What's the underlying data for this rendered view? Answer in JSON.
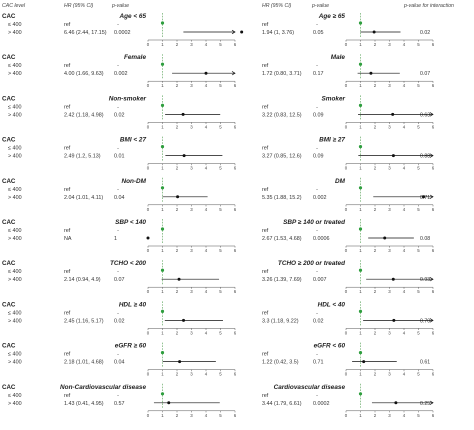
{
  "header": {
    "cac_level": "CAC level",
    "hr_left": "HR (95% CI)",
    "p_left": "p-value",
    "hr_right": "HR (95% CI)",
    "p_right": "p-value",
    "p_interaction": "p-value for interaction"
  },
  "chart_data": {
    "type": "forest",
    "row_group_label": "CAC",
    "row_levels": [
      "≤ 400",
      "> 400"
    ],
    "x_ticks": [
      "0",
      "1",
      "2",
      "3",
      "4",
      "5",
      "6"
    ],
    "xlim": [
      0,
      6
    ],
    "reference_line": 1,
    "colors": {
      "reference_marker": "#2e9e3e",
      "estimate": "#111111",
      "reference_line": "#66aa66"
    },
    "panels": [
      {
        "left": {
          "label": "Age < 65",
          "ref_text": "ref",
          "ref_p": "-",
          "hr_text": "6.46 (2.44, 17.15)",
          "p": "0.0002",
          "hr": 6.46,
          "lo": 2.44,
          "hi": 17.15
        },
        "right": {
          "label": "Age ≥ 65",
          "ref_text": "ref",
          "ref_p": "-",
          "hr_text": "1.94 (1, 3.76)",
          "p": "0.05",
          "hr": 1.94,
          "lo": 1.0,
          "hi": 3.76
        },
        "p_interaction": "0.02"
      },
      {
        "left": {
          "label": "Female",
          "ref_text": "ref",
          "ref_p": "-",
          "hr_text": "4.00 (1.66, 9.63)",
          "p": "0.002",
          "hr": 4.0,
          "lo": 1.66,
          "hi": 9.63
        },
        "right": {
          "label": "Male",
          "ref_text": "ref",
          "ref_p": "-",
          "hr_text": "1.72 (0.80, 3.71)",
          "p": "0.17",
          "hr": 1.72,
          "lo": 0.8,
          "hi": 3.71
        },
        "p_interaction": "0.07"
      },
      {
        "left": {
          "label": "Non-smoker",
          "ref_text": "ref",
          "ref_p": "-",
          "hr_text": "2.42 (1.18, 4.98)",
          "p": "0.02",
          "hr": 2.42,
          "lo": 1.18,
          "hi": 4.98
        },
        "right": {
          "label": "Smoker",
          "ref_text": "ref",
          "ref_p": "-",
          "hr_text": "3.22 (0.83, 12.5)",
          "p": "0.09",
          "hr": 3.22,
          "lo": 0.83,
          "hi": 12.5
        },
        "p_interaction": "0.63"
      },
      {
        "left": {
          "label": "BMI < 27",
          "ref_text": "ref",
          "ref_p": "-",
          "hr_text": "2.49 (1.2, 5.13)",
          "p": "0.01",
          "hr": 2.49,
          "lo": 1.2,
          "hi": 5.13
        },
        "right": {
          "label": "BMI ≥ 27",
          "ref_text": "ref",
          "ref_p": "-",
          "hr_text": "3.27 (0.85, 12.6)",
          "p": "0.09",
          "hr": 3.27,
          "lo": 0.85,
          "hi": 12.6
        },
        "p_interaction": "0.88"
      },
      {
        "left": {
          "label": "Non-DM",
          "ref_text": "ref",
          "ref_p": "-",
          "hr_text": "2.04 (1.01, 4.11)",
          "p": "0.04",
          "hr": 2.04,
          "lo": 1.01,
          "hi": 4.11
        },
        "right": {
          "label": "DM",
          "ref_text": "ref",
          "ref_p": "-",
          "hr_text": "5.35 (1.88, 15.2)",
          "p": "0.002",
          "hr": 5.35,
          "lo": 1.88,
          "hi": 15.2
        },
        "p_interaction": "0.71"
      },
      {
        "left": {
          "label": "SBP < 140",
          "ref_text": "ref",
          "ref_p": "-",
          "hr_text": "NA",
          "p": "1",
          "hr": 0,
          "lo": null,
          "hi": null
        },
        "right": {
          "label": "SBP ≥ 140 or treated",
          "ref_text": "ref",
          "ref_p": "-",
          "hr_text": "2.67 (1.53, 4.68)",
          "p": "0.0006",
          "hr": 2.67,
          "lo": 1.53,
          "hi": 4.68
        },
        "p_interaction": "0.08"
      },
      {
        "left": {
          "label": "TCHO < 200",
          "ref_text": "ref",
          "ref_p": "-",
          "hr_text": "2.14 (0.94, 4.9)",
          "p": "0.07",
          "hr": 2.14,
          "lo": 0.94,
          "hi": 4.9
        },
        "right": {
          "label": "TCHO ≥ 200 or treated",
          "ref_text": "ref",
          "ref_p": "-",
          "hr_text": "3.26 (1.39, 7.69)",
          "p": "0.007",
          "hr": 3.26,
          "lo": 1.39,
          "hi": 7.69
        },
        "p_interaction": "0.93"
      },
      {
        "left": {
          "label": "HDL ≥ 40",
          "ref_text": "ref",
          "ref_p": "-",
          "hr_text": "2.45 (1.16, 5.17)",
          "p": "0.02",
          "hr": 2.45,
          "lo": 1.16,
          "hi": 5.17
        },
        "right": {
          "label": "HDL < 40",
          "ref_text": "ref",
          "ref_p": "-",
          "hr_text": "3.3 (1.18, 9.22)",
          "p": "0.02",
          "hr": 3.3,
          "lo": 1.18,
          "hi": 9.22
        },
        "p_interaction": "0.70"
      },
      {
        "left": {
          "label": "eGFR ≥ 60",
          "ref_text": "ref",
          "ref_p": "-",
          "hr_text": "2.18 (1.01, 4.68)",
          "p": "0.04",
          "hr": 2.18,
          "lo": 1.01,
          "hi": 4.68
        },
        "right": {
          "label": "eGFR < 60",
          "ref_text": "ref",
          "ref_p": "-",
          "hr_text": "1.22 (0.42, 3.5)",
          "p": "0.71",
          "hr": 1.22,
          "lo": 0.42,
          "hi": 3.5
        },
        "p_interaction": "0.61"
      },
      {
        "left": {
          "label": "Non-Cardiovascular disease",
          "ref_text": "ref",
          "ref_p": "-",
          "hr_text": "1.43 (0.41, 4.95)",
          "p": "0.57",
          "hr": 1.43,
          "lo": 0.41,
          "hi": 4.95
        },
        "right": {
          "label": "Cardiovascular disease",
          "ref_text": "ref",
          "ref_p": "-",
          "hr_text": "3.44 (1.79, 6.61)",
          "p": "0.0002",
          "hr": 3.44,
          "lo": 1.79,
          "hi": 6.61
        },
        "p_interaction": "0.25"
      }
    ]
  }
}
